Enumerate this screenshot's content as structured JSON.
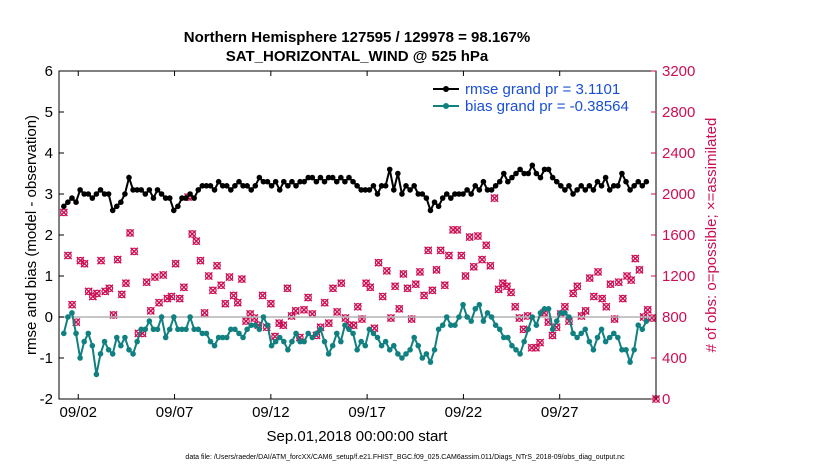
{
  "chart_data": {
    "type": "line",
    "title_line1": "Northern Hemisphere 127595 / 129978 = 98.167%",
    "title_line2": "SAT_HORIZONTAL_WIND @ 525 hPa",
    "ylabel_left": "rmse and bias (model - observation)",
    "ylabel_right": "# of obs: o=possible; ×=assimilated",
    "xlabel": "Sep.01,2018 00:00:00 start",
    "footnote": "data file: /Users/raeder/DAI/ATM_forcXX/CAM6_setup/f.e21.FHIST_BGC.f09_025.CAM6assim.011/Diags_NTrS_2018-09/obs_diag_output.nc",
    "xlim": [
      0,
      31
    ],
    "ylim_left": [
      -2,
      6
    ],
    "ylim_right": [
      0,
      3200
    ],
    "x_ticks": [
      1,
      6,
      11,
      16,
      21,
      26
    ],
    "x_tick_labels": [
      "09/02",
      "09/07",
      "09/12",
      "09/17",
      "09/22",
      "09/27"
    ],
    "y_left_ticks": [
      "-2",
      "-1",
      "0",
      "1",
      "2",
      "3",
      "4",
      "5",
      "6"
    ],
    "y_right_ticks": [
      "0",
      "400",
      "800",
      "1200",
      "1600",
      "2000",
      "2400",
      "2800",
      "3200"
    ],
    "colors": {
      "rmse": "#000000",
      "bias": "#108080",
      "obs": "#cc0f55",
      "zero": "#b4b4b4"
    },
    "series": [
      {
        "name": "rmse grand pr = 3.1101",
        "color": "#000000",
        "values": [
          2.7,
          2.8,
          2.9,
          2.8,
          3.1,
          3.0,
          3.0,
          2.9,
          3.0,
          3.1,
          3.0,
          3.0,
          2.6,
          2.7,
          2.8,
          3.0,
          3.4,
          3.1,
          3.1,
          3.1,
          3.0,
          3.1,
          2.9,
          3.1,
          3.0,
          2.9,
          2.9,
          2.6,
          2.7,
          2.9,
          2.9,
          3.0,
          2.9,
          3.1,
          3.2,
          3.2,
          3.2,
          3.1,
          3.3,
          3.2,
          3.2,
          3.1,
          3.2,
          3.3,
          3.2,
          3.2,
          3.1,
          3.2,
          3.4,
          3.3,
          3.3,
          3.2,
          3.3,
          3.1,
          3.3,
          3.2,
          3.3,
          3.2,
          3.3,
          3.3,
          3.4,
          3.4,
          3.3,
          3.4,
          3.3,
          3.4,
          3.4,
          3.3,
          3.4,
          3.3,
          3.4,
          3.3,
          3.2,
          3.1,
          3.1,
          3.1,
          3.2,
          3.0,
          3.2,
          3.2,
          3.6,
          3.1,
          3.5,
          3.0,
          3.2,
          3.1,
          3.2,
          3.0,
          3.0,
          2.9,
          2.6,
          2.8,
          2.7,
          2.9,
          3.0,
          2.9,
          3.0,
          3.0,
          3.0,
          3.1,
          3.0,
          3.2,
          3.1,
          3.3,
          3.1,
          3.1,
          3.2,
          3.3,
          3.5,
          3.3,
          3.4,
          3.5,
          3.6,
          3.5,
          3.5,
          3.7,
          3.5,
          3.4,
          3.6,
          3.6,
          3.4,
          3.3,
          3.2,
          3.1,
          3.2,
          3.0,
          3.1,
          3.2,
          3.1,
          3.2,
          3.1,
          3.3,
          3.2,
          3.4,
          3.1,
          3.2,
          3.2,
          3.5,
          3.3,
          3.1,
          3.2,
          3.3,
          3.2,
          3.3
        ]
      },
      {
        "name": "bias grand pr = -0.38564",
        "color": "#108080",
        "values": [
          -0.4,
          0.0,
          0.1,
          -0.4,
          -1.0,
          -0.6,
          -0.4,
          -0.7,
          -1.4,
          -0.9,
          -0.6,
          -0.8,
          -0.9,
          -0.5,
          -0.7,
          -0.5,
          -0.8,
          -0.9,
          -0.6,
          -0.3,
          -0.3,
          -0.1,
          -0.3,
          -0.3,
          0.0,
          -0.5,
          -0.3,
          0.0,
          -0.3,
          -0.3,
          -0.3,
          0.0,
          -0.3,
          -0.3,
          -0.4,
          -0.4,
          -0.6,
          -0.7,
          -0.5,
          -0.5,
          -0.5,
          -0.3,
          -0.3,
          -0.4,
          -0.5,
          -0.3,
          -0.2,
          -0.2,
          -0.3,
          0.0,
          -0.2,
          -0.7,
          -0.6,
          -0.5,
          -0.6,
          -0.8,
          -0.6,
          -0.4,
          -0.6,
          -0.6,
          -0.4,
          -0.5,
          -0.4,
          -0.3,
          -0.6,
          -0.9,
          -0.7,
          -0.4,
          -0.6,
          -0.2,
          -0.3,
          -0.4,
          -0.8,
          -0.6,
          -0.7,
          -0.3,
          -0.4,
          -0.5,
          -0.7,
          -0.6,
          -0.8,
          -0.7,
          -0.9,
          -1.0,
          -0.9,
          -0.8,
          -0.5,
          -0.7,
          -1.0,
          -0.9,
          -1.1,
          -0.8,
          -0.3,
          -0.2,
          0.0,
          -0.2,
          -0.2,
          0.0,
          0.3,
          0.0,
          -0.1,
          0.2,
          0.3,
          -0.1,
          0.1,
          0.0,
          -0.2,
          -0.3,
          -0.5,
          -0.5,
          -0.7,
          -0.8,
          -0.9,
          -0.6,
          -0.3,
          0.0,
          -0.2,
          0.1,
          0.2,
          0.2,
          -0.3,
          -0.1,
          0.1,
          0.1,
          0.0,
          -0.4,
          -0.5,
          -0.4,
          -0.3,
          -0.6,
          -0.8,
          -0.5,
          -0.3,
          -0.6,
          -0.5,
          -0.4,
          -0.5,
          -0.8,
          -0.8,
          -1.1,
          -0.8,
          -0.2,
          -0.3,
          -0.1
        ]
      }
    ],
    "obs_assimilated": [
      1820,
      1400,
      920,
      750,
      1350,
      1320,
      1050,
      1000,
      1030,
      1350,
      1050,
      1080,
      820,
      1360,
      1020,
      1130,
      1620,
      1440,
      640,
      640,
      1140,
      860,
      1190,
      940,
      1210,
      980,
      1000,
      1320,
      980,
      1090,
      1970,
      1610,
      1540,
      1350,
      840,
      1200,
      1060,
      1300,
      1110,
      930,
      1190,
      1010,
      940,
      1170,
      760,
      830,
      790,
      720,
      1010,
      700,
      930,
      610,
      740,
      720,
      1080,
      810,
      860,
      600,
      870,
      990,
      830,
      620,
      700,
      940,
      740,
      1080,
      850,
      1130,
      790,
      720,
      720,
      900,
      780,
      1130,
      1090,
      690,
      1330,
      1000,
      1250,
      790,
      1100,
      880,
      1220,
      1080,
      780,
      1120,
      1240,
      1010,
      1450,
      1060,
      1260,
      1450,
      1110,
      1400,
      1650,
      1650,
      1400,
      1200,
      1580,
      1290,
      1590,
      1360,
      1500,
      1300,
      1960,
      1070,
      1130,
      1100,
      1040,
      900,
      790,
      680,
      810,
      500,
      500,
      550,
      840,
      750,
      620,
      700,
      830,
      900,
      760,
      1030,
      1100,
      810,
      860,
      1180,
      1000,
      1240,
      980,
      900,
      1120,
      780,
      1140,
      980,
      1200,
      1160,
      1370,
      1260,
      800,
      870,
      790,
      0
    ]
  }
}
